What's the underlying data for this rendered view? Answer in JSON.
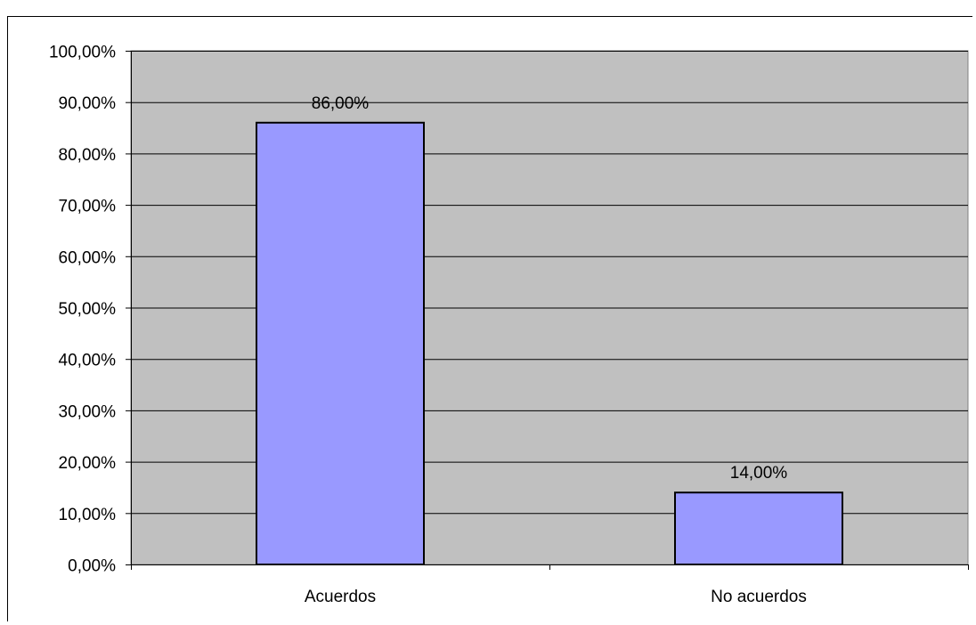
{
  "chart_data": {
    "type": "bar",
    "categories": [
      "Acuerdos",
      "No acuerdos"
    ],
    "values": [
      86.0,
      14.0
    ],
    "data_labels": [
      "86,00%",
      "14,00%"
    ],
    "title": "",
    "xlabel": "",
    "ylabel": "",
    "ylim": [
      0,
      100
    ],
    "y_ticks": [
      0,
      10,
      20,
      30,
      40,
      50,
      60,
      70,
      80,
      90,
      100
    ],
    "y_tick_labels": [
      "0,00%",
      "10,00%",
      "20,00%",
      "30,00%",
      "40,00%",
      "50,00%",
      "60,00%",
      "70,00%",
      "80,00%",
      "90,00%",
      "100,00%"
    ],
    "grid": true,
    "legend": "none",
    "colors": {
      "plot_background": "#c0c0c0",
      "bar_fill": "#9999ff",
      "bar_stroke": "#000000",
      "gridline": "#000000"
    }
  }
}
